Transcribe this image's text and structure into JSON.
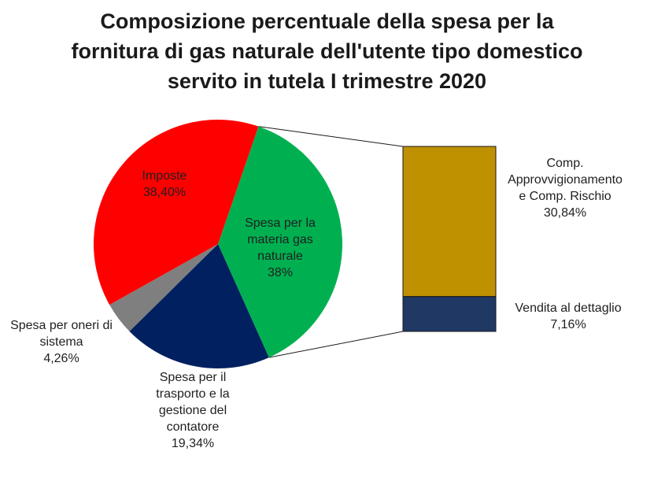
{
  "title_lines": [
    "Composizione percentuale della spesa per la",
    "fornitura di gas naturale dell'utente tipo domestico",
    "servito in tutela I trimestre 2020"
  ],
  "chart_data": {
    "type": "pie",
    "title": "Composizione percentuale della spesa per la fornitura di gas naturale dell'utente tipo domestico servito in tutela I trimestre 2020",
    "slices": [
      {
        "id": "materia",
        "lines": [
          "Spesa per la",
          "materia gas",
          "naturale",
          "38%"
        ],
        "value": 38.0,
        "color": "#00b050"
      },
      {
        "id": "trasporto",
        "lines": [
          "Spesa per il",
          "trasporto e la",
          "gestione del",
          "contatore",
          "19,34%"
        ],
        "value": 19.34,
        "color": "#002060"
      },
      {
        "id": "oneri",
        "lines": [
          "Spesa per oneri di",
          "sistema",
          "4,26%"
        ],
        "value": 4.26,
        "color": "#7f7f7f"
      },
      {
        "id": "imposte",
        "lines": [
          "Imposte",
          "38,40%"
        ],
        "value": 38.4,
        "color": "#ff0000"
      }
    ],
    "breakdown": {
      "of": "materia",
      "segments": [
        {
          "id": "approvvigionamento",
          "lines": [
            "Comp.",
            "Approvvigionamento",
            "e  Comp. Rischio",
            "30,84%"
          ],
          "value": 30.84,
          "color": "#bf9000"
        },
        {
          "id": "vendita",
          "lines": [
            "Vendita al dettaglio",
            "7,16%"
          ],
          "value": 7.16,
          "color": "#1f3864"
        }
      ]
    }
  }
}
